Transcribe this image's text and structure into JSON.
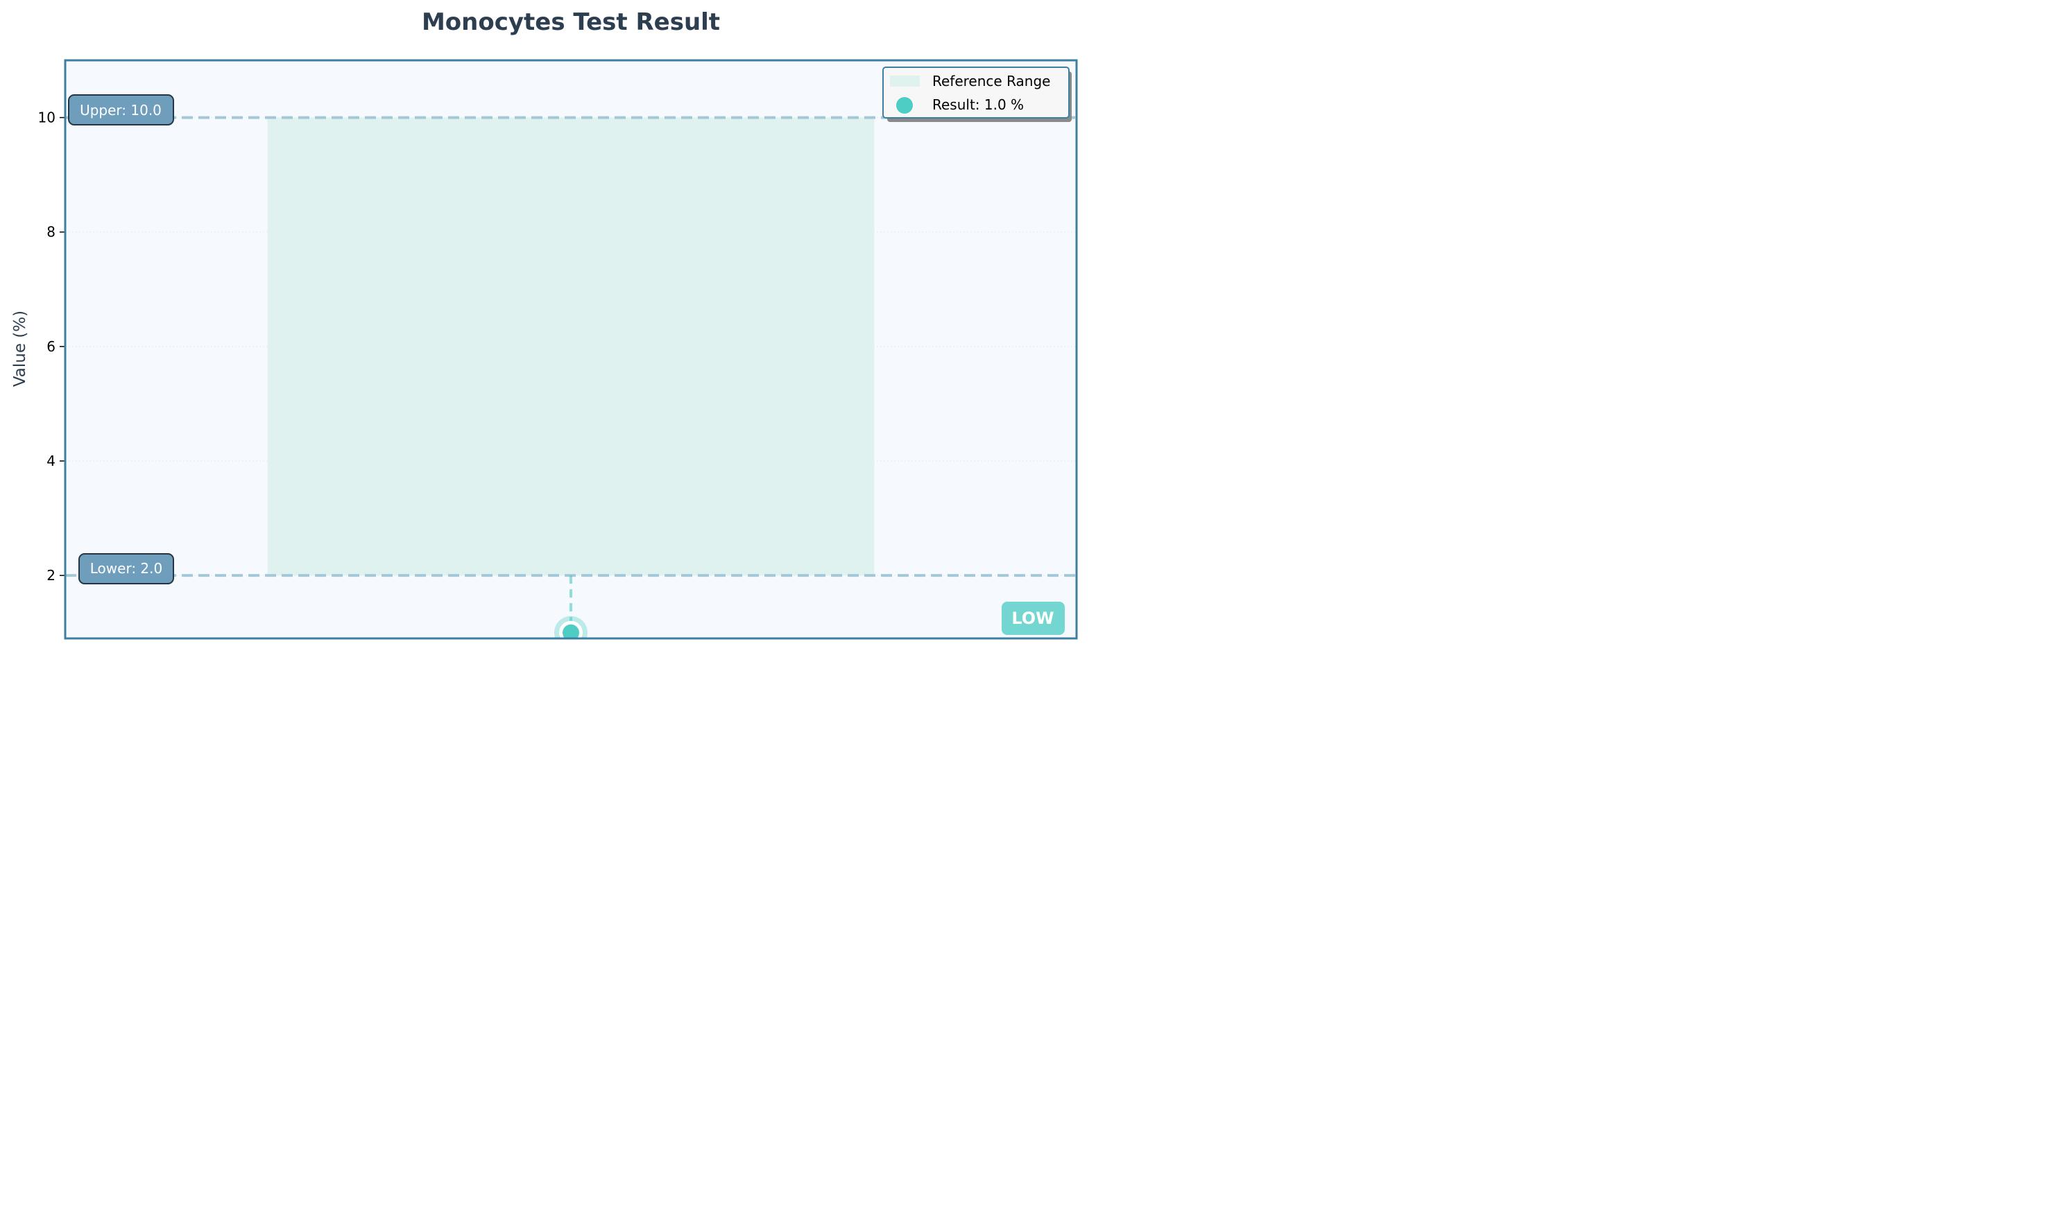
{
  "chart_data": {
    "type": "scatter",
    "title": "Monocytes Test Result",
    "ylabel": "Value (%)",
    "xlabel": "",
    "ylim": [
      0.9,
      11.0
    ],
    "yticks": [
      2,
      4,
      6,
      8,
      10
    ],
    "ytick_labels": [
      "2",
      "4",
      "6",
      "8",
      "10"
    ],
    "reference_range": {
      "lower": 2.0,
      "upper": 10.0
    },
    "lower_label": "Lower: 2.0",
    "upper_label": "Upper: 10.0",
    "series": [
      {
        "name": "Result: 1.0 %",
        "values": [
          1.0
        ]
      }
    ],
    "legend": {
      "placement": "top-right",
      "entries": [
        "Reference Range",
        "Result: 1.0 %"
      ]
    },
    "status_badge": "LOW",
    "grid": true
  },
  "colors": {
    "plot_background": "#f6f9fd",
    "plot_border": "#3d7fa0",
    "reference_band": "#dff2ef",
    "limit_line": "#a6c8d6",
    "limit_label_bg": "#6f9ebd",
    "result_point": "#4ecdc4",
    "title_text": "#2c3e50",
    "badge_bg": "#74d6d0"
  }
}
